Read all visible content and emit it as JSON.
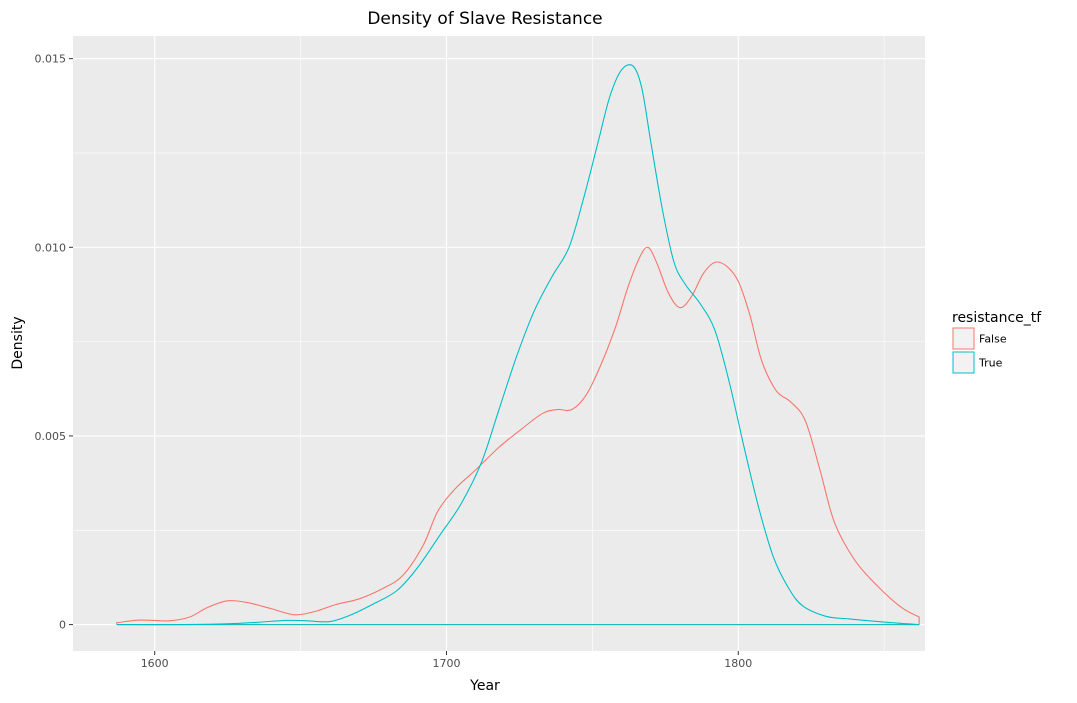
{
  "chart_data": {
    "type": "line",
    "title": "Density of Slave Resistance",
    "xlabel": "Year",
    "ylabel": "Density",
    "xlim": [
      1572,
      1864
    ],
    "ylim": [
      -0.0007,
      0.0156
    ],
    "x_ticks": [
      1600,
      1700,
      1800
    ],
    "x_tick_labels": [
      "1600",
      "1700",
      "1800"
    ],
    "y_ticks": [
      0,
      0.005,
      0.01,
      0.015
    ],
    "y_tick_labels": [
      "0",
      "0.005",
      "0.010",
      "0.015"
    ],
    "grid": true,
    "legend": {
      "title": "resistance_tf",
      "placement": "right",
      "entries": [
        "False",
        "True"
      ]
    },
    "series": [
      {
        "name": "False",
        "color": "#F8766D",
        "x": [
          1587,
          1595,
          1605,
          1612,
          1618,
          1625,
          1632,
          1640,
          1648,
          1655,
          1662,
          1670,
          1678,
          1685,
          1692,
          1697,
          1703,
          1710,
          1718,
          1726,
          1733,
          1738,
          1743,
          1748,
          1753,
          1758,
          1762,
          1766,
          1769,
          1772,
          1776,
          1780,
          1784,
          1788,
          1792,
          1796,
          1800,
          1804,
          1808,
          1813,
          1818,
          1823,
          1828,
          1833,
          1840,
          1848,
          1856,
          1862
        ],
        "values": [
          5e-05,
          0.00012,
          0.0001,
          0.0002,
          0.00045,
          0.00063,
          0.00058,
          0.00042,
          0.00026,
          0.00035,
          0.00053,
          0.00068,
          0.00095,
          0.0013,
          0.0021,
          0.003,
          0.0036,
          0.0041,
          0.0047,
          0.0052,
          0.0056,
          0.0057,
          0.0057,
          0.0061,
          0.0069,
          0.0079,
          0.0089,
          0.0097,
          0.01,
          0.0096,
          0.0088,
          0.0084,
          0.0087,
          0.0093,
          0.0096,
          0.0095,
          0.0091,
          0.0082,
          0.007,
          0.0062,
          0.0059,
          0.0054,
          0.0041,
          0.0027,
          0.0017,
          0.001,
          0.00045,
          0.0002
        ]
      },
      {
        "name": "True",
        "color": "#00BFC4",
        "x": [
          1587,
          1610,
          1625,
          1635,
          1645,
          1652,
          1660,
          1667,
          1675,
          1683,
          1690,
          1698,
          1705,
          1712,
          1718,
          1724,
          1730,
          1736,
          1742,
          1747,
          1752,
          1756,
          1760,
          1764,
          1767,
          1770,
          1774,
          1778,
          1782,
          1787,
          1792,
          1797,
          1802,
          1807,
          1812,
          1817,
          1822,
          1830,
          1838,
          1848,
          1856,
          1862
        ],
        "values": [
          0.0,
          0.0,
          2e-05,
          6e-05,
          0.00011,
          0.0001,
          8e-05,
          0.00025,
          0.00055,
          0.0009,
          0.0015,
          0.0024,
          0.0032,
          0.0043,
          0.0057,
          0.0071,
          0.0083,
          0.0092,
          0.01,
          0.0113,
          0.0128,
          0.014,
          0.0147,
          0.0148,
          0.0142,
          0.0128,
          0.011,
          0.0096,
          0.009,
          0.0085,
          0.0078,
          0.0064,
          0.0047,
          0.0031,
          0.0018,
          0.001,
          0.0005,
          0.00022,
          0.00015,
          8e-05,
          3e-05,
          0.0
        ]
      }
    ]
  }
}
